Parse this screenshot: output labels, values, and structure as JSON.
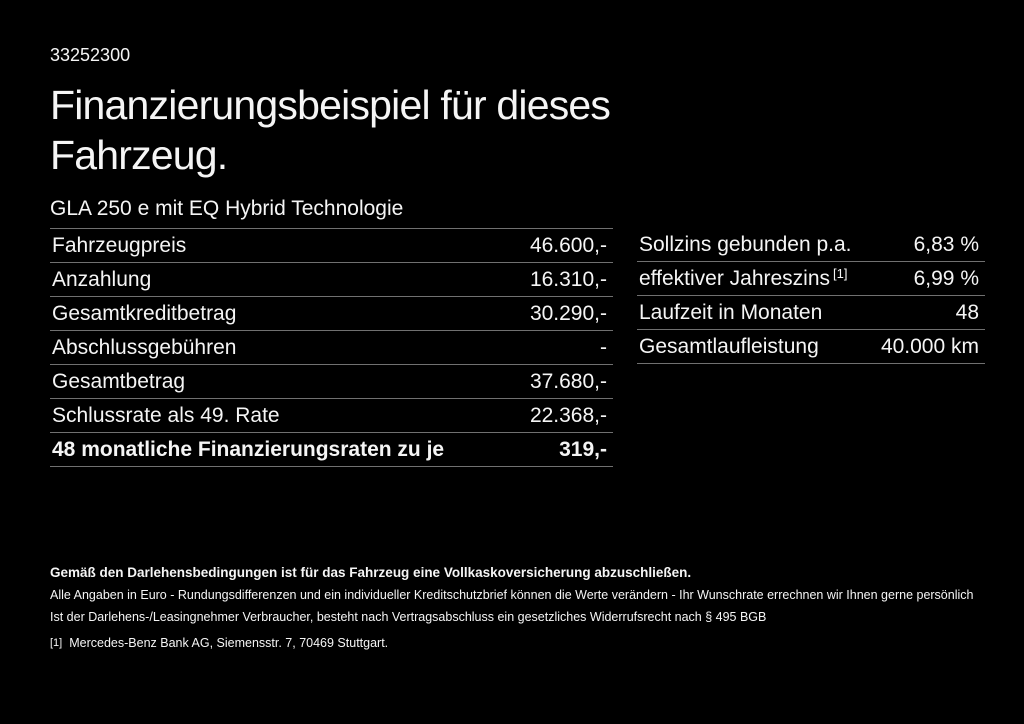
{
  "colors": {
    "background": "#000000",
    "text": "#f5f5f5",
    "divider": "#707070"
  },
  "header": {
    "doc_id": "33252300",
    "title_line1": "Finanzierungsbeispiel für dieses",
    "title_line2": "Fahrzeug."
  },
  "vehicle": {
    "model": "GLA 250 e mit EQ Hybrid Technologie"
  },
  "financing_table": {
    "rows": [
      {
        "label": "Fahrzeugpreis",
        "value": "46.600,-"
      },
      {
        "label": "Anzahlung",
        "value": "16.310,-"
      },
      {
        "label": "Gesamtkreditbetrag",
        "value": "30.290,-"
      },
      {
        "label": "Abschlussgebühren",
        "value": "-"
      },
      {
        "label": "Gesamtbetrag",
        "value": "37.680,-"
      },
      {
        "label": "Schlussrate als 49. Rate",
        "value": "22.368,-"
      },
      {
        "label": "48 monatliche Finanzierungsraten zu je",
        "value": "319,-",
        "bold": true
      }
    ]
  },
  "conditions_table": {
    "rows": [
      {
        "label": "Sollzins gebunden p.a.",
        "value": "6,83 %"
      },
      {
        "label": "effektiver Jahreszins",
        "sup": "[1]",
        "value": "6,99 %"
      },
      {
        "label": "Laufzeit in Monaten",
        "value": "48"
      },
      {
        "label": "Gesamtlaufleistung",
        "value": "40.000 km"
      }
    ]
  },
  "footer": {
    "insurance_note": "Gemäß den Darlehensbedingungen ist für das Fahrzeug eine Vollkaskoversicherung abzuschließen.",
    "disclaimer1": "Alle Angaben in Euro - Rundungsdifferenzen und ein individueller Kreditschutzbrief können die Werte verändern - Ihr Wunschrate errechnen wir Ihnen gerne persönlich",
    "disclaimer2": "Ist der Darlehens-/Leasingnehmer Verbraucher, besteht nach Vertragsabschluss ein gesetzliches Widerrufsrecht nach § 495 BGB",
    "footnote_marker": "[1]",
    "footnote_text": "Mercedes-Benz Bank AG, Siemensstr. 7, 70469 Stuttgart."
  }
}
